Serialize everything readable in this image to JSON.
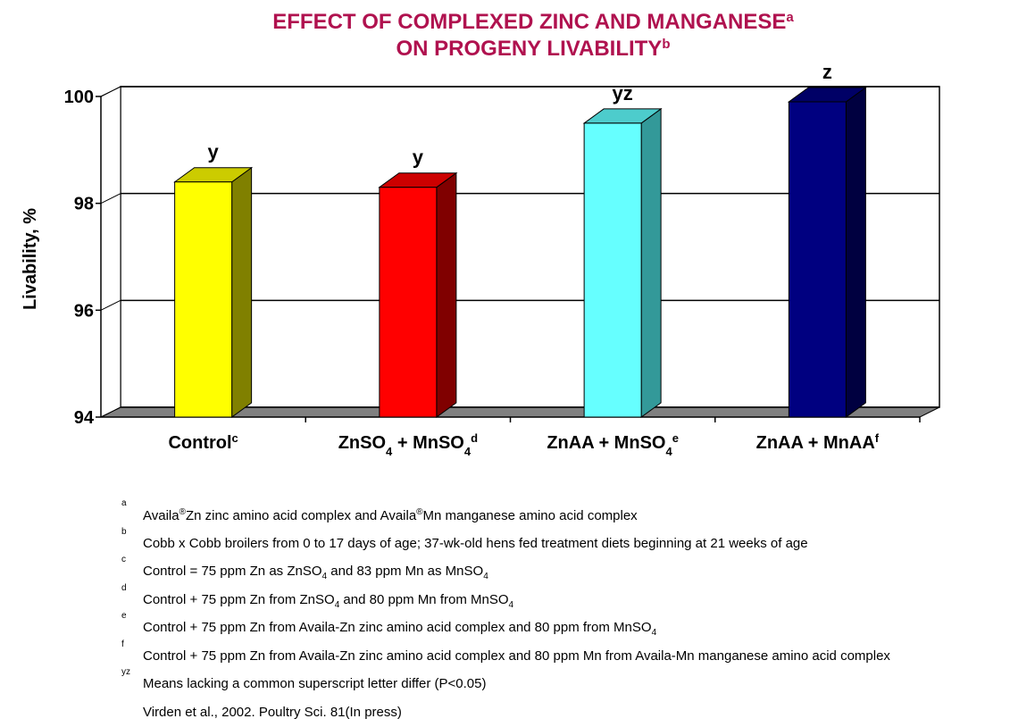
{
  "chart_data": {
    "type": "bar3d",
    "title": [
      "EFFECT OF COMPLEXED ZINC AND MANGANESE",
      "ON PROGENY LIVABILITY"
    ],
    "title_marks": [
      "a",
      "b"
    ],
    "y_label": "Livability, %",
    "categories": [
      "Control",
      "ZnSO4 + MnSO4",
      "ZnAA + MnSO4",
      "ZnAA + MnAA"
    ],
    "category_marks": [
      "c",
      "d",
      "e",
      "f"
    ],
    "values": [
      98.4,
      98.3,
      99.5,
      99.9
    ],
    "significance": [
      "y",
      "y",
      "yz",
      "z"
    ],
    "colors": [
      "#ffff00",
      "#ff0000",
      "#66ffff",
      "#000080"
    ],
    "side_colors": [
      "#808000",
      "#800000",
      "#339999",
      "#000040"
    ],
    "top_colors": [
      "#cccc00",
      "#cc0000",
      "#4dcccc",
      "#000066"
    ],
    "ylim": [
      94,
      100
    ],
    "yticks": [
      94,
      96,
      98,
      100
    ],
    "grid": true
  },
  "footnotes": [
    {
      "mark": "a",
      "text": "Availa®Zn zinc amino acid complex and Availa®Mn manganese amino acid complex"
    },
    {
      "mark": "b",
      "text": "Cobb x Cobb broilers from 0 to 17 days of age; 37-wk-old hens fed treatment diets beginning at 21 weeks of age"
    },
    {
      "mark": "c",
      "text": "Control = 75 ppm Zn as ZnSO4 and 83 ppm Mn as MnSO4"
    },
    {
      "mark": "d",
      "text": "Control + 75 ppm Zn from ZnSO4 and 80 ppm Mn from MnSO4"
    },
    {
      "mark": "e",
      "text": "Control + 75 ppm Zn from Availa-Zn zinc amino acid complex and 80 ppm from MnSO4"
    },
    {
      "mark": "f",
      "text": "Control + 75 ppm Zn from Availa-Zn zinc amino acid complex and 80 ppm Mn from Availa-Mn manganese amino acid complex"
    },
    {
      "mark": "yz",
      "text": "Means lacking a common superscript letter differ (P<0.05)"
    }
  ],
  "source": "Virden et al., 2002. Poultry Sci. 81(In press)"
}
